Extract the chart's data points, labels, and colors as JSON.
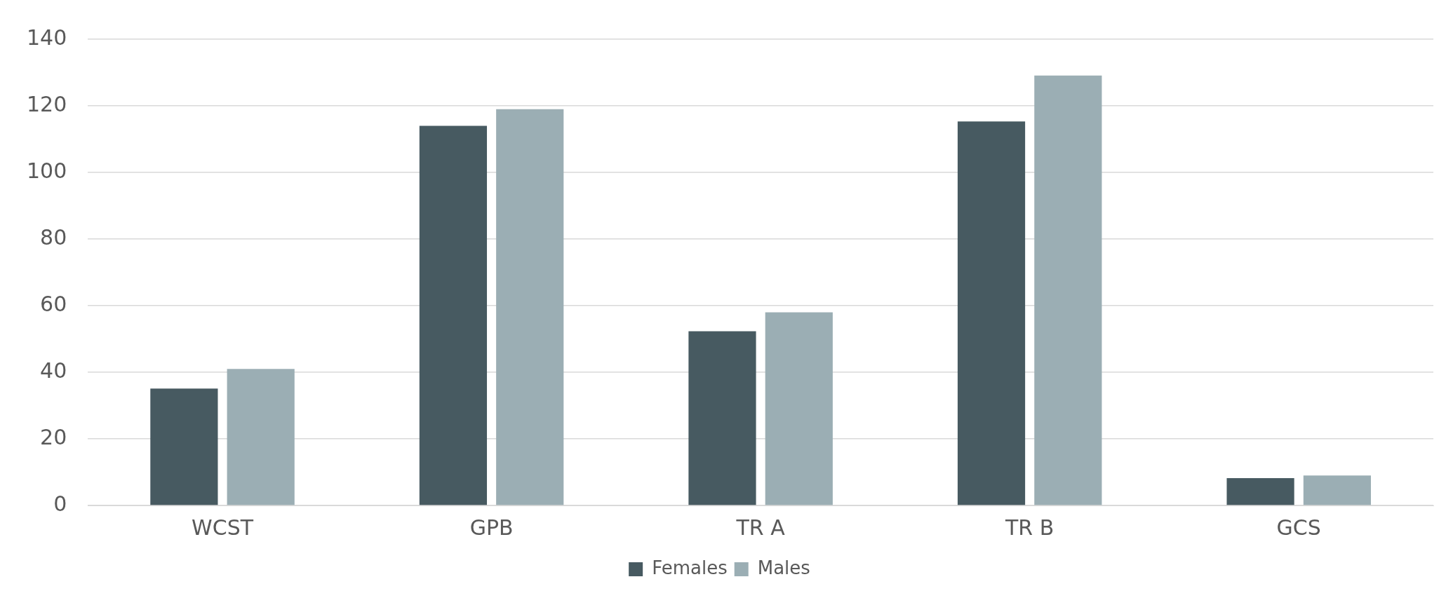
{
  "chart_data": {
    "type": "bar",
    "categories": [
      "WCST",
      "GPB",
      "TR A",
      "TR B",
      "GCS"
    ],
    "series": [
      {
        "name": "Females",
        "color": "#475a61",
        "values": [
          35.1,
          114,
          52.3,
          115.3,
          8.2
        ]
      },
      {
        "name": "Males",
        "color": "#9baeb4",
        "values": [
          41,
          119,
          58,
          129.1,
          9
        ]
      }
    ],
    "ylim": [
      0,
      140
    ],
    "yticks": [
      0,
      20,
      40,
      60,
      80,
      100,
      120,
      140
    ],
    "grid": "y",
    "legend": "bottom"
  }
}
